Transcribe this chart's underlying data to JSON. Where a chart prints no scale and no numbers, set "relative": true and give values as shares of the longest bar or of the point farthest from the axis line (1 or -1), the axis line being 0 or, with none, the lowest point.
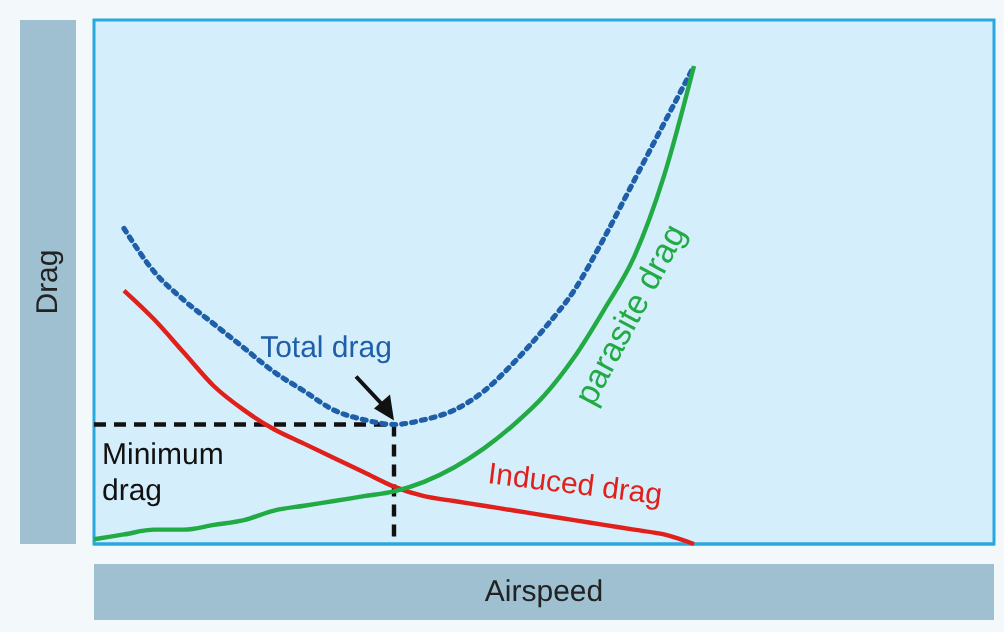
{
  "chart_data": {
    "type": "line",
    "relative": true,
    "xlabel": "Airspeed",
    "ylabel": "Drag",
    "categories": [
      null,
      null,
      null,
      null,
      null,
      null,
      null,
      null,
      null,
      null,
      null,
      null,
      null,
      null,
      null,
      null,
      null,
      null,
      null,
      null,
      null,
      null,
      null,
      null,
      null,
      null,
      null,
      null,
      null,
      null,
      null
    ],
    "series": [
      {
        "name": "Total drag",
        "color": "#1f5fa8",
        "line_style": "dotted",
        "values": [
          null,
          0.66,
          0.57,
          0.51,
          0.46,
          0.41,
          0.36,
          0.32,
          0.28,
          0.26,
          0.25,
          0.26,
          0.28,
          0.32,
          0.38,
          0.45,
          0.53,
          0.64,
          0.76,
          0.88,
          1,
          null,
          null,
          null,
          null,
          null,
          null,
          null,
          null,
          null,
          null
        ]
      },
      {
        "name": "Induced drag",
        "color": "#e0201b",
        "line_style": "solid",
        "values": [
          null,
          0.53,
          0.47,
          0.4,
          0.33,
          0.28,
          0.24,
          0.21,
          0.18,
          0.15,
          0.12,
          0.1,
          0.09,
          0.08,
          0.07,
          0.06,
          0.05,
          0.04,
          0.03,
          0.02,
          0,
          null,
          null,
          null,
          null,
          null,
          null,
          null,
          null,
          null,
          null
        ]
      },
      {
        "name": "parasite drag",
        "color": "#22aa44",
        "line_style": "solid",
        "values": [
          0.01,
          0.02,
          0.03,
          0.03,
          0.04,
          0.05,
          0.07,
          0.08,
          0.09,
          0.1,
          0.11,
          0.13,
          0.16,
          0.2,
          0.25,
          0.31,
          0.39,
          0.49,
          0.6,
          0.77,
          1,
          null,
          null,
          null,
          null,
          null,
          null,
          null,
          null,
          null,
          null
        ]
      }
    ],
    "ref_lines": [
      {
        "axis": "y",
        "value": 0.25,
        "label": "Minimum drag",
        "color": "#111111",
        "line_style": "dashed"
      }
    ]
  }
}
